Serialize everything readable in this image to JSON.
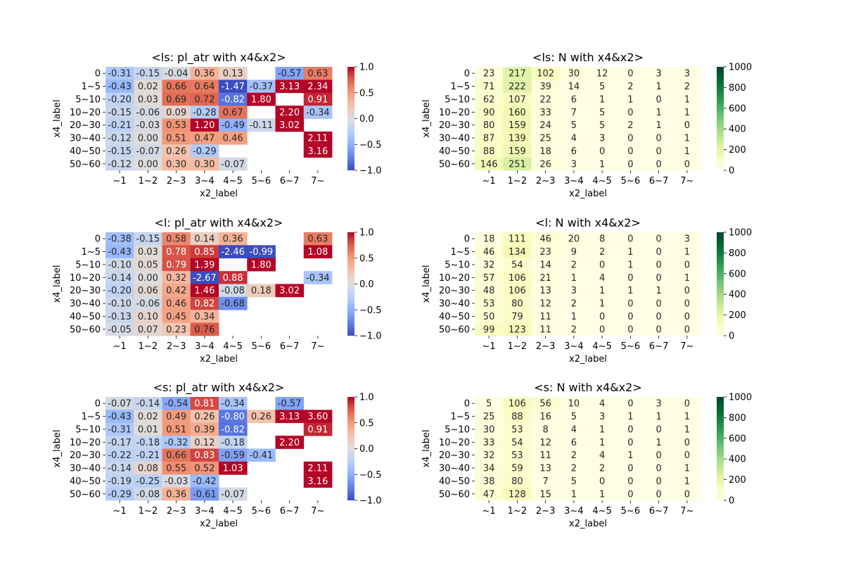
{
  "chart_data": [
    {
      "type": "heatmap",
      "title": "<ls: pl_atr with x4&x2>",
      "xlabel": "x2_label",
      "ylabel": "x4_label",
      "x_categories": [
        "~1",
        "1~2",
        "2~3",
        "3~4",
        "4~5",
        "5~6",
        "6~7",
        "7~"
      ],
      "y_categories": [
        "0",
        "1~5",
        "5~10",
        "10~20",
        "20~30",
        "30~40",
        "40~50",
        "50~60"
      ],
      "colormap": "coolwarm",
      "vmin": -1.0,
      "vmax": 1.0,
      "colorbar_ticks": [
        "1.0",
        "0.5",
        "0.0",
        "−0.5",
        "−1.0"
      ],
      "values": [
        [
          -0.31,
          -0.15,
          -0.04,
          0.36,
          0.13,
          null,
          -0.57,
          0.63
        ],
        [
          -0.43,
          0.02,
          0.66,
          0.64,
          -1.47,
          -0.37,
          3.13,
          2.34
        ],
        [
          -0.2,
          0.03,
          0.69,
          0.72,
          -0.82,
          1.8,
          null,
          0.91
        ],
        [
          -0.15,
          -0.06,
          0.09,
          -0.28,
          0.67,
          null,
          2.2,
          -0.34
        ],
        [
          -0.21,
          -0.03,
          0.53,
          1.2,
          -0.49,
          -0.11,
          3.02,
          null
        ],
        [
          -0.12,
          -0.0,
          0.51,
          0.47,
          0.46,
          null,
          null,
          2.11
        ],
        [
          -0.15,
          -0.07,
          0.26,
          -0.29,
          null,
          null,
          null,
          3.16
        ],
        [
          -0.12,
          -0.0,
          0.3,
          0.3,
          -0.07,
          null,
          null,
          null
        ]
      ]
    },
    {
      "type": "heatmap",
      "title": "<ls: N with x4&x2>",
      "xlabel": "x2_label",
      "ylabel": "x4_label",
      "x_categories": [
        "~1",
        "1~2",
        "2~3",
        "3~4",
        "4~5",
        "5~6",
        "6~7",
        "7~"
      ],
      "y_categories": [
        "0",
        "1~5",
        "5~10",
        "10~20",
        "20~30",
        "30~40",
        "40~50",
        "50~60"
      ],
      "colormap": "YlGn",
      "vmin": 0,
      "vmax": 1000,
      "colorbar_ticks": [
        "1000",
        "800",
        "600",
        "400",
        "200",
        "0"
      ],
      "values": [
        [
          23,
          217,
          102,
          30,
          12,
          0,
          3,
          3
        ],
        [
          71,
          222,
          39,
          14,
          5,
          2,
          1,
          2
        ],
        [
          62,
          107,
          22,
          6,
          1,
          1,
          0,
          1
        ],
        [
          90,
          160,
          33,
          7,
          5,
          0,
          1,
          1
        ],
        [
          80,
          159,
          24,
          5,
          5,
          2,
          1,
          0
        ],
        [
          87,
          139,
          25,
          4,
          3,
          0,
          0,
          1
        ],
        [
          88,
          159,
          18,
          6,
          0,
          0,
          0,
          1
        ],
        [
          146,
          251,
          26,
          3,
          1,
          0,
          0,
          0
        ]
      ]
    },
    {
      "type": "heatmap",
      "title": "<l: pl_atr with x4&x2>",
      "xlabel": "x2_label",
      "ylabel": "x4_label",
      "x_categories": [
        "~1",
        "1~2",
        "2~3",
        "3~4",
        "4~5",
        "5~6",
        "6~7",
        "7~"
      ],
      "y_categories": [
        "0",
        "1~5",
        "5~10",
        "10~20",
        "20~30",
        "30~40",
        "40~50",
        "50~60"
      ],
      "colormap": "coolwarm",
      "vmin": -1.0,
      "vmax": 1.0,
      "colorbar_ticks": [
        "1.0",
        "0.5",
        "0.0",
        "−0.5",
        "−1.0"
      ],
      "values": [
        [
          -0.38,
          -0.15,
          0.58,
          0.14,
          0.36,
          null,
          null,
          0.63
        ],
        [
          -0.43,
          0.03,
          0.78,
          0.85,
          -2.46,
          -0.99,
          null,
          1.08
        ],
        [
          -0.1,
          0.05,
          0.79,
          1.39,
          null,
          1.8,
          null,
          null
        ],
        [
          -0.14,
          -0.0,
          0.32,
          -2.67,
          0.88,
          null,
          null,
          -0.34
        ],
        [
          -0.2,
          0.06,
          0.42,
          1.46,
          -0.08,
          0.18,
          3.02,
          null
        ],
        [
          -0.1,
          -0.06,
          0.46,
          0.82,
          -0.68,
          null,
          null,
          null
        ],
        [
          -0.13,
          0.1,
          0.45,
          0.34,
          null,
          null,
          null,
          null
        ],
        [
          -0.05,
          0.07,
          0.23,
          0.76,
          null,
          null,
          null,
          null
        ]
      ]
    },
    {
      "type": "heatmap",
      "title": "<l: N with x4&x2>",
      "xlabel": "x2_label",
      "ylabel": "x4_label",
      "x_categories": [
        "~1",
        "1~2",
        "2~3",
        "3~4",
        "4~5",
        "5~6",
        "6~7",
        "7~"
      ],
      "y_categories": [
        "0",
        "1~5",
        "5~10",
        "10~20",
        "20~30",
        "30~40",
        "40~50",
        "50~60"
      ],
      "colormap": "YlGn",
      "vmin": 0,
      "vmax": 1000,
      "colorbar_ticks": [
        "1000",
        "800",
        "600",
        "400",
        "200",
        "0"
      ],
      "values": [
        [
          18,
          111,
          46,
          20,
          8,
          0,
          0,
          3
        ],
        [
          46,
          134,
          23,
          9,
          2,
          1,
          0,
          1
        ],
        [
          32,
          54,
          14,
          2,
          0,
          1,
          0,
          0
        ],
        [
          57,
          106,
          21,
          1,
          4,
          0,
          0,
          1
        ],
        [
          48,
          106,
          13,
          3,
          1,
          1,
          1,
          0
        ],
        [
          53,
          80,
          12,
          2,
          1,
          0,
          0,
          0
        ],
        [
          50,
          79,
          11,
          1,
          0,
          0,
          0,
          0
        ],
        [
          99,
          123,
          11,
          2,
          0,
          0,
          0,
          0
        ]
      ]
    },
    {
      "type": "heatmap",
      "title": "<s: pl_atr with x4&x2>",
      "xlabel": "x2_label",
      "ylabel": "x4_label",
      "x_categories": [
        "~1",
        "1~2",
        "2~3",
        "3~4",
        "4~5",
        "5~6",
        "6~7",
        "7~"
      ],
      "y_categories": [
        "0",
        "1~5",
        "5~10",
        "10~20",
        "20~30",
        "30~40",
        "40~50",
        "50~60"
      ],
      "colormap": "coolwarm",
      "vmin": -1.0,
      "vmax": 1.0,
      "colorbar_ticks": [
        "1.0",
        "0.5",
        "0.0",
        "−0.5",
        "−1.0"
      ],
      "values": [
        [
          -0.07,
          -0.14,
          -0.54,
          0.81,
          -0.34,
          null,
          -0.57,
          null
        ],
        [
          -0.43,
          0.02,
          0.49,
          0.26,
          -0.8,
          0.26,
          3.13,
          3.6
        ],
        [
          -0.31,
          0.01,
          0.51,
          0.39,
          -0.82,
          null,
          null,
          0.91
        ],
        [
          -0.17,
          -0.18,
          -0.32,
          0.12,
          -0.18,
          null,
          2.2,
          null
        ],
        [
          -0.22,
          -0.21,
          0.66,
          0.83,
          -0.59,
          -0.41,
          null,
          null
        ],
        [
          -0.14,
          0.08,
          0.55,
          0.52,
          1.03,
          null,
          null,
          2.11
        ],
        [
          -0.19,
          -0.25,
          -0.03,
          -0.42,
          null,
          null,
          null,
          3.16
        ],
        [
          -0.29,
          -0.08,
          0.36,
          -0.61,
          -0.07,
          null,
          null,
          null
        ]
      ]
    },
    {
      "type": "heatmap",
      "title": "<s: N with x4&x2>",
      "xlabel": "x2_label",
      "ylabel": "x4_label",
      "x_categories": [
        "~1",
        "1~2",
        "2~3",
        "3~4",
        "4~5",
        "5~6",
        "6~7",
        "7~"
      ],
      "y_categories": [
        "0",
        "1~5",
        "5~10",
        "10~20",
        "20~30",
        "30~40",
        "40~50",
        "50~60"
      ],
      "colormap": "YlGn",
      "vmin": 0,
      "vmax": 1000,
      "colorbar_ticks": [
        "1000",
        "800",
        "600",
        "400",
        "200",
        "0"
      ],
      "values": [
        [
          5,
          106,
          56,
          10,
          4,
          0,
          3,
          0
        ],
        [
          25,
          88,
          16,
          5,
          3,
          1,
          1,
          1
        ],
        [
          30,
          53,
          8,
          4,
          1,
          0,
          0,
          1
        ],
        [
          33,
          54,
          12,
          6,
          1,
          0,
          1,
          0
        ],
        [
          32,
          53,
          11,
          2,
          4,
          1,
          0,
          0
        ],
        [
          34,
          59,
          13,
          2,
          2,
          0,
          0,
          1
        ],
        [
          38,
          80,
          7,
          5,
          0,
          0,
          0,
          1
        ],
        [
          47,
          128,
          15,
          1,
          1,
          0,
          0,
          0
        ]
      ]
    }
  ]
}
